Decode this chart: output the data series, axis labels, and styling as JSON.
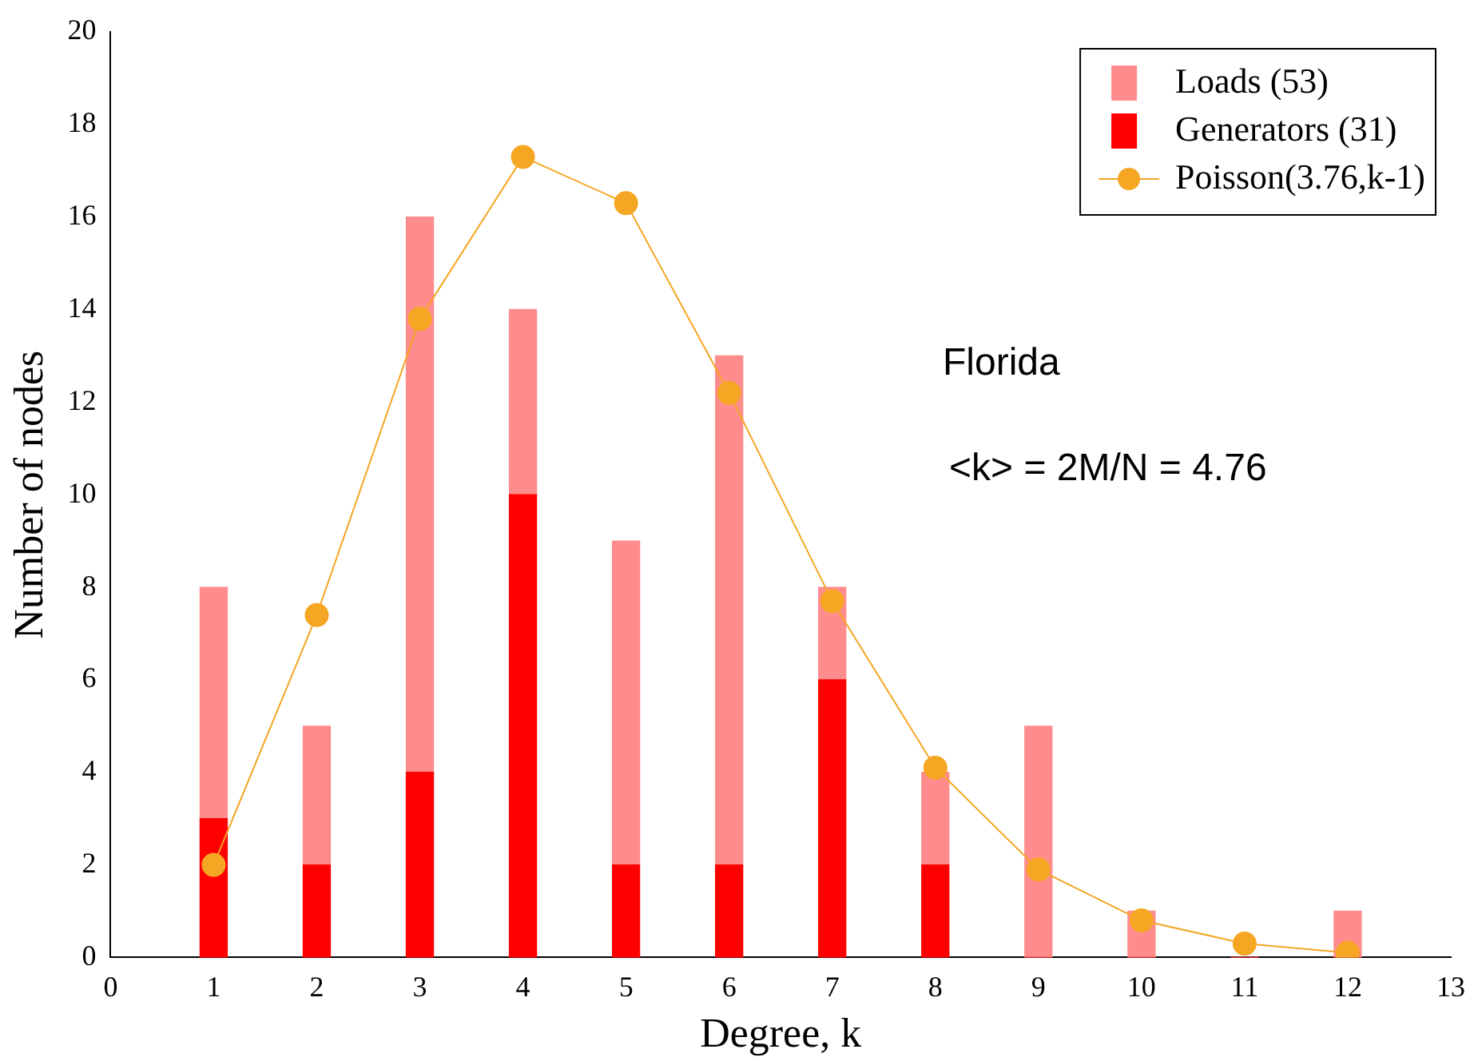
{
  "chart_data": {
    "type": "bar",
    "stacked": true,
    "xlabel": "Degree, k",
    "ylabel": "Number of nodes",
    "x": [
      1,
      2,
      3,
      4,
      5,
      6,
      7,
      8,
      9,
      10,
      11,
      12
    ],
    "series": [
      {
        "name": "Generators (31)",
        "color": "#ff0000",
        "values": [
          3,
          2,
          4,
          10,
          2,
          2,
          6,
          2,
          0,
          0,
          0,
          0
        ]
      },
      {
        "name": "Loads (53)",
        "color": "#ff8c8c",
        "values": [
          5,
          3,
          12,
          4,
          7,
          11,
          2,
          2,
          5,
          1,
          0,
          1
        ]
      },
      {
        "name": "Poisson(3.76,k-1)",
        "type": "line",
        "color": "#f5a623",
        "marker": "circle",
        "values": [
          2.0,
          7.4,
          13.8,
          17.3,
          16.3,
          12.2,
          7.7,
          4.1,
          1.9,
          0.8,
          0.3,
          0.1
        ]
      }
    ],
    "xlim": [
      0,
      13
    ],
    "xticks": [
      0,
      1,
      2,
      3,
      4,
      5,
      6,
      7,
      8,
      9,
      10,
      11,
      12,
      13
    ],
    "ylim": [
      0,
      20
    ],
    "yticks": [
      0,
      2,
      4,
      6,
      8,
      10,
      12,
      14,
      16,
      18,
      20
    ],
    "grid": false,
    "legend": "top right",
    "annotations": [
      "Florida",
      "<k> = 2M/N = 4.76"
    ]
  }
}
